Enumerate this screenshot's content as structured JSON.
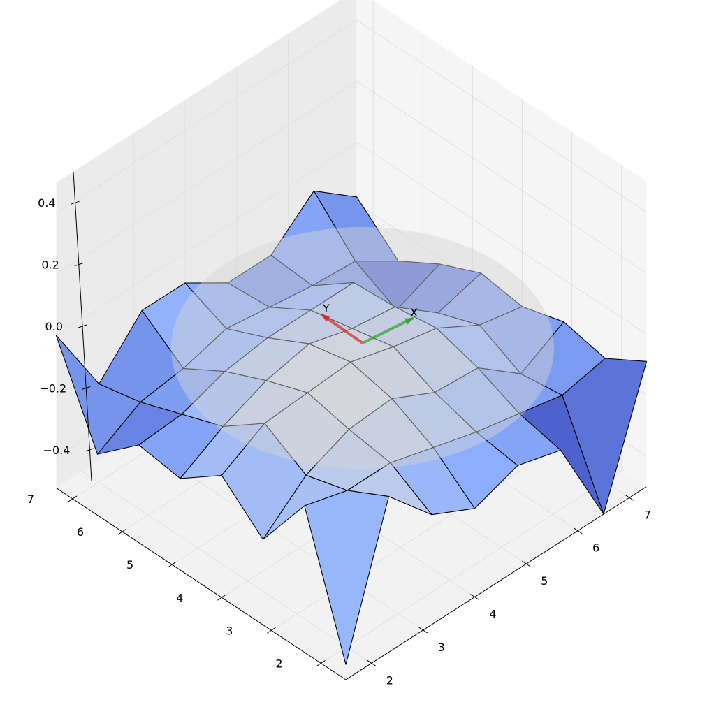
{
  "chart_data": {
    "type": "surface3d",
    "title": "",
    "xlabel": "",
    "ylabel": "",
    "zlabel": "",
    "x_ticks": [
      "2",
      "3",
      "4",
      "5",
      "6",
      "7"
    ],
    "y_ticks": [
      "2",
      "3",
      "4",
      "5",
      "6",
      "7"
    ],
    "z_ticks": [
      "−0.4",
      "−0.2",
      "0.0",
      "0.2",
      "0.4"
    ],
    "z_range": [
      -0.5,
      0.5
    ],
    "grid": true,
    "colormap": "coolwarm",
    "colormap_range": [
      -0.3,
      0.3
    ],
    "ellipse_overlay": {
      "color": "#d4d4d4",
      "opacity": 0.45
    },
    "frame_arrows": [
      {
        "label": "X",
        "color": "#2ca02c"
      },
      {
        "label": "Y",
        "color": "#d62728"
      }
    ],
    "surface": {
      "x": [
        1.5,
        2.3333,
        3.1667,
        4.0,
        4.8333,
        5.6667,
        6.5,
        7.3333
      ],
      "y": [
        1.5,
        2.3333,
        3.1667,
        4.0,
        4.8333,
        5.6667,
        6.5,
        7.3333
      ],
      "z": [
        [
          -0.45,
          -0.02,
          -0.22,
          -0.1,
          -0.2,
          -0.18,
          -0.3,
          0.0
        ],
        [
          0.01,
          -0.06,
          -0.1,
          -0.02,
          -0.12,
          -0.17,
          -0.22,
          -0.25
        ],
        [
          -0.14,
          -0.06,
          -0.04,
          -0.01,
          -0.06,
          -0.12,
          -0.2,
          -0.1
        ],
        [
          -0.21,
          -0.1,
          -0.03,
          0.0,
          -0.03,
          -0.1,
          -0.16,
          -0.1
        ],
        [
          -0.16,
          -0.14,
          -0.1,
          -0.04,
          -0.07,
          -0.1,
          -0.18,
          -0.19
        ],
        [
          -0.2,
          -0.17,
          -0.11,
          -0.07,
          -0.09,
          -0.1,
          -0.2,
          -0.19
        ],
        [
          -0.5,
          -0.2,
          -0.22,
          -0.15,
          -0.2,
          -0.28,
          -0.21,
          -0.07
        ],
        [
          -0.09,
          -0.17,
          -0.14,
          -0.18,
          -0.16,
          -0.22,
          -0.3,
          -0.18
        ]
      ]
    }
  }
}
